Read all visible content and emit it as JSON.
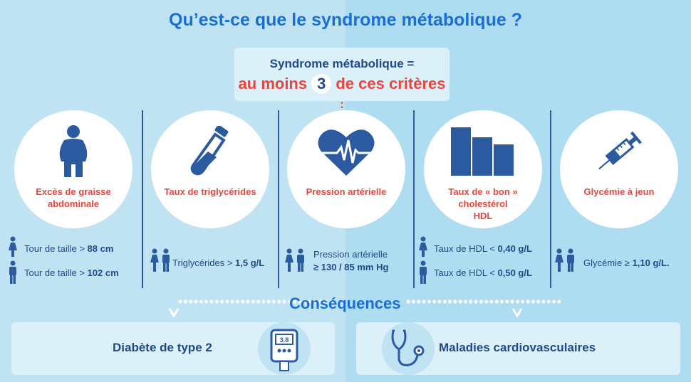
{
  "title": "Qu’est-ce que le syndrome métabolique ?",
  "banner": {
    "line1": "Syndrome métabolique =",
    "prefix": "au moins",
    "number": "3",
    "suffix": "de ces critères",
    "colon": ":"
  },
  "criteria": [
    {
      "label": "Excès de graisse abdominale",
      "icon": "obese-person-icon",
      "rules": [
        {
          "icon": "woman-icon",
          "text": "Tour de taille >",
          "value": "88 cm"
        },
        {
          "icon": "man-icon",
          "text": "Tour de taille >",
          "value": "102 cm"
        }
      ]
    },
    {
      "label": "Taux de triglycérides",
      "icon": "test-tube-icon",
      "rules": [
        {
          "icon": "couple-icon",
          "text": "Triglycérides >",
          "value": "1,5 g/L"
        }
      ]
    },
    {
      "label": "Pression artérielle",
      "icon": "heart-pulse-icon",
      "rules": [
        {
          "icon": "couple-icon",
          "text": "Pression artérielle",
          "value": "≥ 130 / 85 mm Hg"
        }
      ]
    },
    {
      "label1": "Taux de « bon »",
      "label2": "cholestérol",
      "label3": "HDL",
      "icon": "bar-chart-icon",
      "rules": [
        {
          "icon": "woman-icon",
          "text": "Taux de HDL <",
          "value": "0,40 g/L"
        },
        {
          "icon": "man-icon",
          "text": "Taux de HDL <",
          "value": "0,50 g/L"
        }
      ]
    },
    {
      "label": "Glycémie à jeun",
      "icon": "syringe-icon",
      "rules": [
        {
          "icon": "couple-icon",
          "text": "Glycémie ≥",
          "value": "1,10 g/L."
        }
      ]
    }
  ],
  "consequences": {
    "title": "Conséquences",
    "left": {
      "text": "Diabète de type 2",
      "icon": "glucose-meter-icon",
      "meter_value": "3.8"
    },
    "right": {
      "text": "Maladies cardiovasculaires",
      "icon": "stethoscope-icon"
    }
  },
  "colors": {
    "accent": "#1a6fd4",
    "navy": "#1f4a8a",
    "red": "#e8453c"
  }
}
